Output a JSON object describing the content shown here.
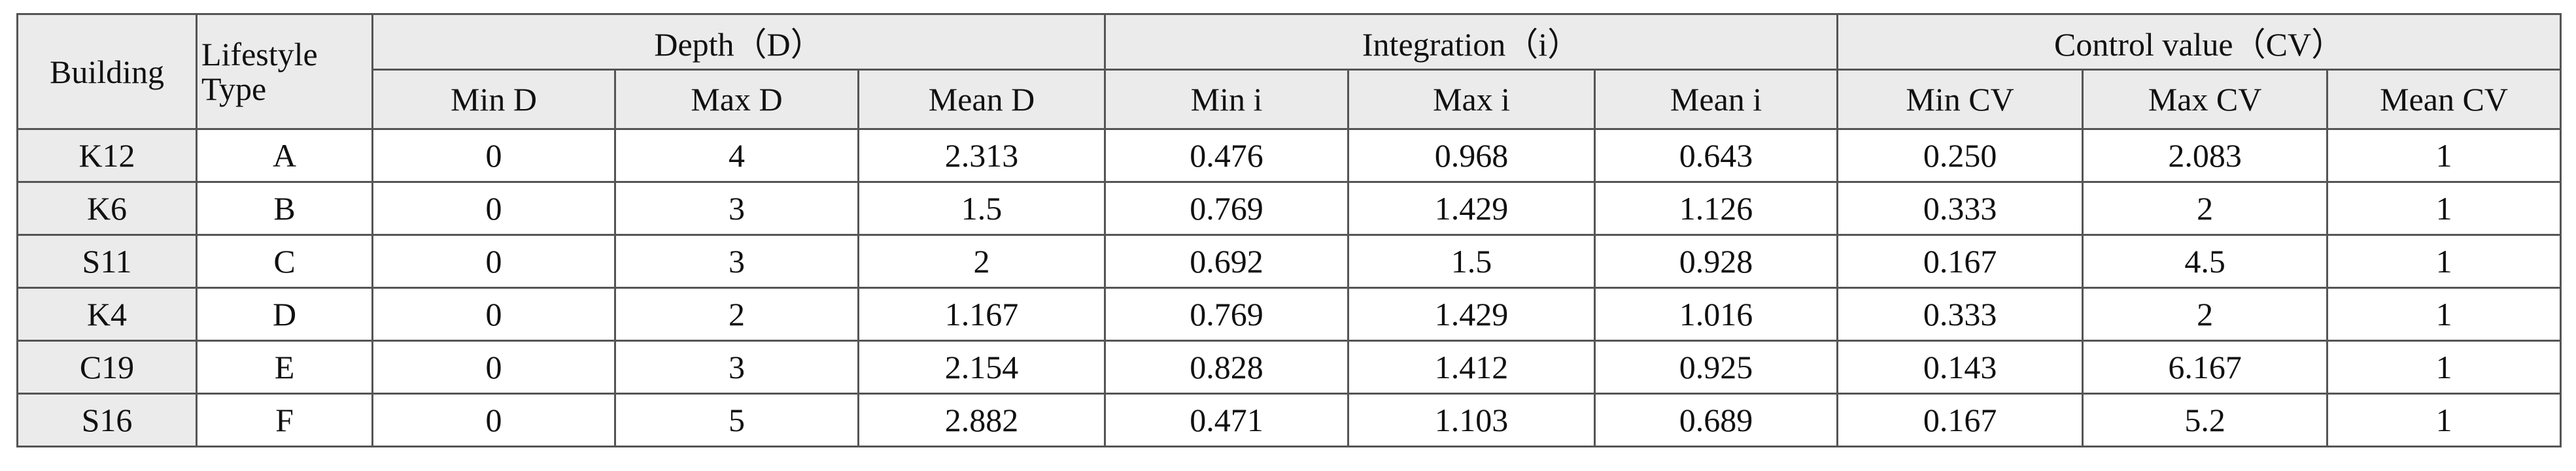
{
  "table": {
    "header": {
      "building": "Building",
      "lifestyle": "Lifestyle Type",
      "groups": [
        "Depth（D）",
        "Integration（i）",
        "Control value（CV）"
      ],
      "columns": [
        "Min D",
        "Max D",
        "Mean D",
        "Min i",
        "Max i",
        "Mean i",
        "Min CV",
        "Max CV",
        "Mean CV"
      ]
    },
    "rows": [
      [
        "K12",
        "A",
        "0",
        "4",
        "2.313",
        "0.476",
        "0.968",
        "0.643",
        "0.250",
        "2.083",
        "1"
      ],
      [
        "K6",
        "B",
        "0",
        "3",
        "1.5",
        "0.769",
        "1.429",
        "1.126",
        "0.333",
        "2",
        "1"
      ],
      [
        "S11",
        "C",
        "0",
        "3",
        "2",
        "0.692",
        "1.5",
        "0.928",
        "0.167",
        "4.5",
        "1"
      ],
      [
        "K4",
        "D",
        "0",
        "2",
        "1.167",
        "0.769",
        "1.429",
        "1.016",
        "0.333",
        "2",
        "1"
      ],
      [
        "C19",
        "E",
        "0",
        "3",
        "2.154",
        "0.828",
        "1.412",
        "0.925",
        "0.143",
        "6.167",
        "1"
      ],
      [
        "S16",
        "F",
        "0",
        "5",
        "2.882",
        "0.471",
        "1.103",
        "0.689",
        "0.167",
        "5.2",
        "1"
      ]
    ]
  }
}
